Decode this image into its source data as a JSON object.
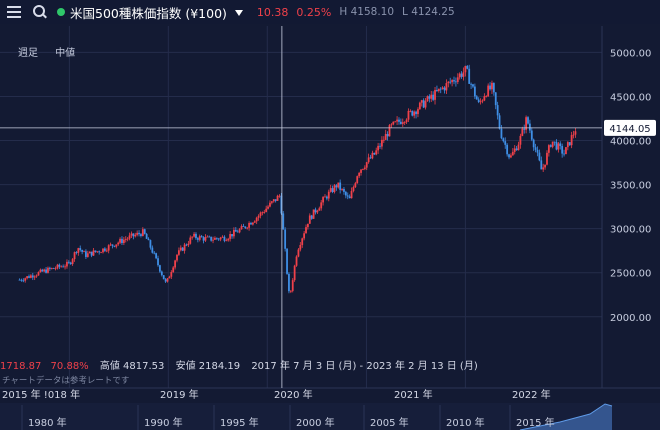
{
  "header": {
    "title": "米国500種株価指数 (¥100)",
    "change": "10.38",
    "change_pct": "0.25%",
    "high": "H 4158.10",
    "low": "L 4124.25"
  },
  "toolbar": {
    "period": "週足",
    "price_type": "中値"
  },
  "current_price_label": "4144.05",
  "stats": {
    "partial_value": "1718.87",
    "change_pct": "70.88%",
    "high": "高値 4817.53",
    "low": "安値 2184.19",
    "range": "2017 年 7 月 3 日 (月) - 2023 年 2 月 13 日 (月)"
  },
  "note": "チャートデータは参考レートです",
  "colors": {
    "up": "#f0414a",
    "down": "#3f8fe6",
    "background": "#131a33"
  },
  "chart_data": {
    "type": "candlestick",
    "x_start": "2017-07-03",
    "x_end": "2023-02-13",
    "ylim": [
      1600,
      5300
    ],
    "y_ticks": [
      "5000.00",
      "4500.00",
      "4000.00",
      "3500.00",
      "3000.00",
      "2500.00",
      "2000.00"
    ],
    "y_tick_values": [
      5000,
      4500,
      4000,
      3500,
      3000,
      2500,
      2000
    ],
    "x_tick_labels": [
      "2015 年 !018 年",
      "2019 年",
      "2020 年",
      "2021 年",
      "2022 年"
    ],
    "x_tick_dates": [
      "2018-01-01",
      "2019-01-01",
      "2020-01-01",
      "2021-01-01",
      "2022-01-01"
    ],
    "crosshair_date": "2020-02-24",
    "crosshair_value": 4144.05,
    "series": [
      {
        "date": "2017-07-01",
        "close": 2420
      },
      {
        "date": "2017-10-01",
        "close": 2520
      },
      {
        "date": "2018-01-01",
        "close": 2600
      },
      {
        "date": "2018-02-01",
        "close": 2790
      },
      {
        "date": "2018-03-01",
        "close": 2700
      },
      {
        "date": "2018-05-01",
        "close": 2760
      },
      {
        "date": "2018-08-01",
        "close": 2890
      },
      {
        "date": "2018-10-01",
        "close": 2960
      },
      {
        "date": "2018-11-01",
        "close": 2760
      },
      {
        "date": "2018-12-24",
        "close": 2370
      },
      {
        "date": "2019-02-01",
        "close": 2700
      },
      {
        "date": "2019-04-01",
        "close": 2910
      },
      {
        "date": "2019-06-01",
        "close": 2880
      },
      {
        "date": "2019-08-01",
        "close": 2900
      },
      {
        "date": "2019-10-01",
        "close": 3000
      },
      {
        "date": "2019-12-01",
        "close": 3150
      },
      {
        "date": "2020-02-17",
        "close": 3380
      },
      {
        "date": "2020-03-23",
        "close": 2200
      },
      {
        "date": "2020-04-20",
        "close": 2750
      },
      {
        "date": "2020-06-01",
        "close": 3100
      },
      {
        "date": "2020-08-01",
        "close": 3350
      },
      {
        "date": "2020-09-15",
        "close": 3500
      },
      {
        "date": "2020-10-30",
        "close": 3320
      },
      {
        "date": "2020-12-01",
        "close": 3650
      },
      {
        "date": "2021-02-01",
        "close": 3850
      },
      {
        "date": "2021-04-01",
        "close": 4150
      },
      {
        "date": "2021-07-01",
        "close": 4350
      },
      {
        "date": "2021-09-01",
        "close": 4500
      },
      {
        "date": "2021-11-01",
        "close": 4650
      },
      {
        "date": "2022-01-03",
        "close": 4800
      },
      {
        "date": "2022-02-20",
        "close": 4400
      },
      {
        "date": "2022-03-15",
        "close": 4550
      },
      {
        "date": "2022-04-10",
        "close": 4600
      },
      {
        "date": "2022-05-10",
        "close": 4100
      },
      {
        "date": "2022-06-15",
        "close": 3800
      },
      {
        "date": "2022-07-20",
        "close": 4000
      },
      {
        "date": "2022-08-15",
        "close": 4250
      },
      {
        "date": "2022-10-10",
        "close": 3650
      },
      {
        "date": "2022-11-15",
        "close": 4000
      },
      {
        "date": "2023-01-01",
        "close": 3850
      },
      {
        "date": "2023-02-13",
        "close": 4144
      }
    ]
  },
  "navigator": {
    "year_labels": [
      "1980 年",
      "1990 年",
      "1995 年",
      "2000 年",
      "2005 年",
      "2010 年",
      "2015 年"
    ]
  }
}
